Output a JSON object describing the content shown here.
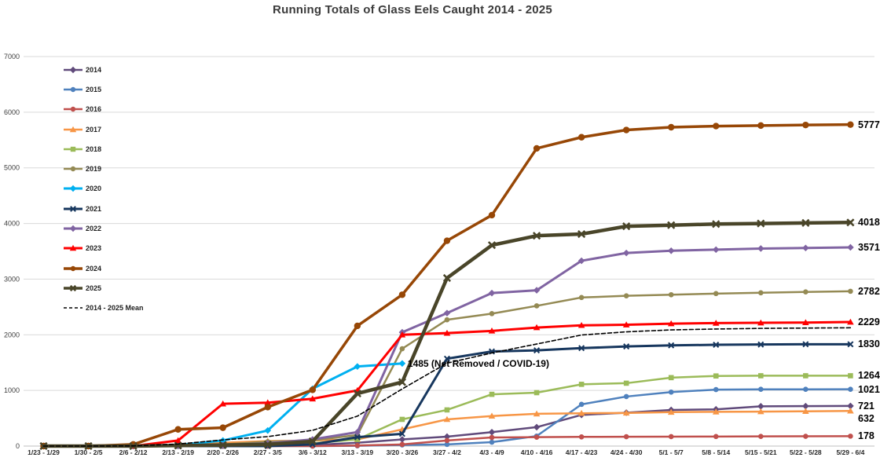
{
  "chart_data": {
    "type": "line",
    "title": "Running Totals of Glass Eels Caught 2014 - 2025",
    "xlabel": "",
    "ylabel": "",
    "ylim": [
      0,
      7000
    ],
    "y_ticks": [
      "0",
      "1000",
      "2000",
      "3000",
      "4000",
      "5000",
      "6000",
      "7000"
    ],
    "grid": "horizontal",
    "legend_position": "inside-top-left",
    "categories": [
      "1/23 - 1/29",
      "1/30 - 2/5",
      "2/6 - 2/12",
      "2/13 - 2/19",
      "2/20 - 2/26",
      "2/27 - 3/5",
      "3/6 - 3/12",
      "3/13 - 3/19",
      "3/20 - 3/26",
      "3/27 - 4/2",
      "4/3 - 4/9",
      "4/10 - 4/16",
      "4/17 - 4/23",
      "4/24 - 4/30",
      "5/1 - 5/7",
      "5/8 - 5/14",
      "5/15 - 5/21",
      "5/22 - 5/28",
      "5/29 - 6/4"
    ],
    "series": [
      {
        "name": "2014",
        "color": "#604a7b",
        "marker": "diamond",
        "width": 2.5,
        "values": [
          0,
          0,
          0,
          0,
          5,
          10,
          20,
          60,
          120,
          170,
          250,
          340,
          560,
          600,
          650,
          660,
          715,
          718,
          721
        ]
      },
      {
        "name": "2015",
        "color": "#4f81bd",
        "marker": "circle",
        "width": 2.5,
        "values": [
          0,
          0,
          0,
          0,
          0,
          0,
          0,
          5,
          20,
          30,
          70,
          180,
          750,
          890,
          970,
          1015,
          1020,
          1020,
          1021
        ]
      },
      {
        "name": "2016",
        "color": "#c0504d",
        "marker": "circle",
        "width": 2.5,
        "values": [
          0,
          0,
          0,
          0,
          0,
          0,
          0,
          10,
          30,
          100,
          155,
          160,
          165,
          168,
          170,
          172,
          174,
          176,
          178
        ]
      },
      {
        "name": "2017",
        "color": "#f79646",
        "marker": "triangle",
        "width": 2.5,
        "values": [
          0,
          0,
          0,
          10,
          60,
          90,
          100,
          120,
          300,
          480,
          540,
          580,
          590,
          595,
          610,
          615,
          620,
          625,
          632
        ]
      },
      {
        "name": "2018",
        "color": "#9bbb59",
        "marker": "square",
        "width": 2.5,
        "values": [
          0,
          0,
          0,
          0,
          10,
          20,
          50,
          120,
          480,
          650,
          930,
          960,
          1110,
          1130,
          1230,
          1260,
          1264,
          1264,
          1264
        ]
      },
      {
        "name": "2019",
        "color": "#948a54",
        "marker": "circle",
        "width": 2.5,
        "values": [
          0,
          0,
          0,
          0,
          30,
          80,
          100,
          200,
          1750,
          2270,
          2380,
          2520,
          2670,
          2700,
          2720,
          2740,
          2755,
          2770,
          2782
        ]
      },
      {
        "name": "2020",
        "color": "#00b0f0",
        "marker": "diamond",
        "width": 3,
        "values": [
          0,
          0,
          0,
          20,
          100,
          280,
          1030,
          1430,
          1485,
          null,
          null,
          null,
          null,
          null,
          null,
          null,
          null,
          null,
          null
        ]
      },
      {
        "name": "2021",
        "color": "#17375e",
        "marker": "x",
        "width": 3,
        "values": [
          0,
          0,
          0,
          0,
          0,
          0,
          30,
          160,
          220,
          1570,
          1700,
          1720,
          1760,
          1790,
          1810,
          1820,
          1825,
          1830,
          1830
        ]
      },
      {
        "name": "2022",
        "color": "#8064a2",
        "marker": "diamond",
        "width": 3,
        "values": [
          0,
          0,
          0,
          5,
          20,
          50,
          120,
          250,
          2045,
          2390,
          2750,
          2800,
          3330,
          3470,
          3510,
          3530,
          3550,
          3560,
          3571
        ]
      },
      {
        "name": "2023",
        "color": "#ff0000",
        "marker": "triangle",
        "width": 3,
        "values": [
          0,
          0,
          0,
          100,
          760,
          780,
          850,
          1000,
          2000,
          2030,
          2070,
          2130,
          2170,
          2180,
          2200,
          2210,
          2215,
          2220,
          2229
        ]
      },
      {
        "name": "2024",
        "color": "#974706",
        "marker": "circle",
        "width": 3.5,
        "values": [
          0,
          0,
          30,
          300,
          330,
          700,
          1010,
          2160,
          2720,
          3690,
          4150,
          5350,
          5550,
          5680,
          5730,
          5750,
          5760,
          5770,
          5777
        ]
      },
      {
        "name": "2025",
        "color": "#494529",
        "marker": "x",
        "width": 4.5,
        "values": [
          0,
          0,
          0,
          10,
          20,
          30,
          85,
          945,
          1150,
          3020,
          3610,
          3780,
          3810,
          3950,
          3970,
          3990,
          4000,
          4010,
          4018
        ]
      },
      {
        "name": "2014 - 2025 Mean",
        "color": "#000000",
        "marker": "none",
        "width": 1.6,
        "dashed": true,
        "values": [
          0,
          0,
          3,
          37,
          111,
          170,
          283,
          538,
          1027,
          1490,
          1674,
          1834,
          1996,
          2053,
          2088,
          2104,
          2115,
          2121,
          2126
        ]
      }
    ],
    "end_labels": [
      {
        "series": "2024",
        "text": "5777"
      },
      {
        "series": "2025",
        "text": "4018"
      },
      {
        "series": "2022",
        "text": "3571"
      },
      {
        "series": "2019",
        "text": "2782"
      },
      {
        "series": "2023",
        "text": "2229"
      },
      {
        "series": "2021",
        "text": "1830"
      },
      {
        "series": "2018",
        "text": "1264"
      },
      {
        "series": "2015",
        "text": "1021"
      },
      {
        "series": "2014",
        "text": "721"
      },
      {
        "series": "2017",
        "text": "632"
      },
      {
        "series": "2016",
        "text": "178"
      }
    ],
    "annotation": {
      "text": "1485 (Net Removed / COVID-19)",
      "attach_series": "2020"
    }
  }
}
